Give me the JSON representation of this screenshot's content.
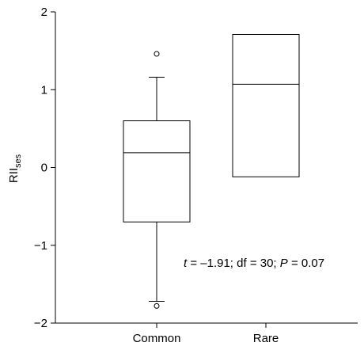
{
  "chart_data": {
    "type": "box",
    "ylabel": "RII",
    "ylabel_subscript": "ses",
    "ylim": [
      -2,
      2
    ],
    "yticks": [
      -2,
      -1,
      0,
      1,
      2
    ],
    "ytick_labels": [
      "−2",
      "−1",
      "0",
      "1",
      "2"
    ],
    "categories": [
      "Common",
      "Rare"
    ],
    "boxes": [
      {
        "category": "Common",
        "q1": -0.7,
        "median": 0.19,
        "q3": 0.6,
        "whisker_low": -1.72,
        "whisker_high": 1.16,
        "outliers": [
          1.46,
          -1.78
        ]
      },
      {
        "category": "Rare",
        "q1": -0.12,
        "median": 1.07,
        "q3": 1.71,
        "whisker_low": null,
        "whisker_high": null,
        "outliers": []
      }
    ],
    "annotation": {
      "t_symbol": "t",
      "t_value": " = –1.91; df = 30; ",
      "p_symbol": "P",
      "p_value": " = 0.07"
    }
  }
}
